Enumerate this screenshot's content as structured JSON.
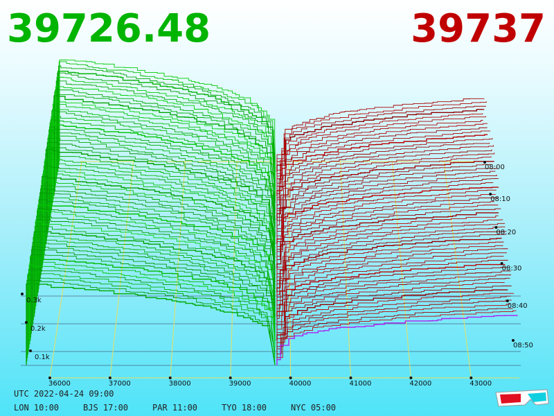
{
  "prices": {
    "bid": "39726.48",
    "ask": "39737"
  },
  "price_axis": [
    "36000",
    "37000",
    "38000",
    "39000",
    "40000",
    "41000",
    "42000",
    "43000"
  ],
  "volume_axis": [
    "0.3k",
    "0.2k",
    "0.1k"
  ],
  "time_axis": [
    "08:00",
    "08:10",
    "08:20",
    "08:30",
    "08:40",
    "08:50"
  ],
  "timestamp": "UTC 2022-04-24 09:00",
  "clocks": [
    "LON 10:00",
    "BJS 17:00",
    "PAR 11:00",
    "TYO 18:00",
    "NYC 05:00"
  ]
}
